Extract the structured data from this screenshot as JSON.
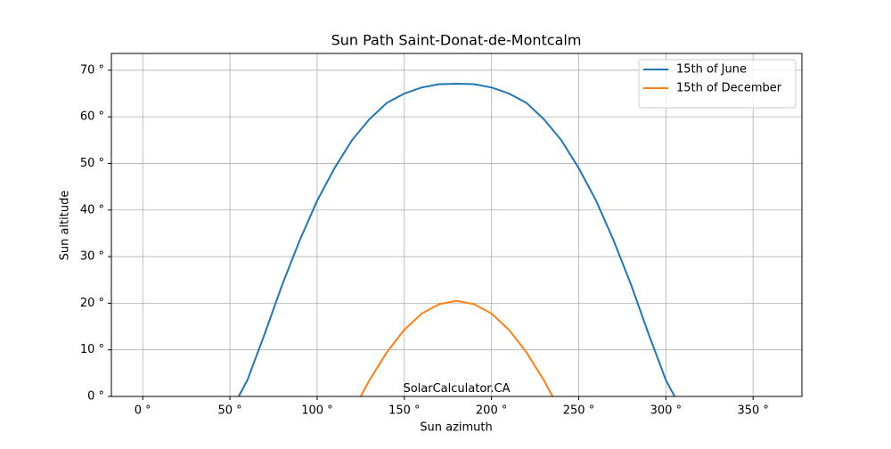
{
  "chart_data": {
    "type": "line",
    "title": "Sun Path Saint-Donat-de-Montcalm",
    "xlabel": "Sun azimuth",
    "ylabel": "Sun altitude",
    "annotation": "SolarCalculator.CA",
    "xlim": [
      -18,
      378
    ],
    "ylim": [
      0,
      73.6
    ],
    "xticks": [
      {
        "value": 0,
        "label": "0 °"
      },
      {
        "value": 50,
        "label": "50 °"
      },
      {
        "value": 100,
        "label": "100 °"
      },
      {
        "value": 150,
        "label": "150 °"
      },
      {
        "value": 200,
        "label": "200 °"
      },
      {
        "value": 250,
        "label": "250 °"
      },
      {
        "value": 300,
        "label": "300 °"
      },
      {
        "value": 350,
        "label": "350 °"
      }
    ],
    "yticks": [
      {
        "value": 0,
        "label": "0 °"
      },
      {
        "value": 10,
        "label": "10 °"
      },
      {
        "value": 20,
        "label": "20 °"
      },
      {
        "value": 30,
        "label": "30 °"
      },
      {
        "value": 40,
        "label": "40 °"
      },
      {
        "value": 50,
        "label": "50 °"
      },
      {
        "value": 60,
        "label": "60 °"
      },
      {
        "value": 70,
        "label": "70 °"
      }
    ],
    "grid": true,
    "legend": "upper-right",
    "series": [
      {
        "name": "15th of June",
        "color": "#1f77b4",
        "x": [
          55,
          60,
          70,
          80,
          90,
          100,
          110,
          120,
          130,
          140,
          150,
          160,
          170,
          180,
          190,
          200,
          210,
          220,
          230,
          240,
          250,
          260,
          270,
          280,
          290,
          300,
          305
        ],
        "values": [
          0,
          3.5,
          13.5,
          24,
          33.5,
          42,
          49,
          55,
          59.5,
          63,
          65,
          66.3,
          67,
          67.1,
          67,
          66.3,
          65,
          63,
          59.5,
          55,
          49,
          42,
          33.5,
          24,
          13.5,
          3.5,
          0
        ]
      },
      {
        "name": "15th of December",
        "color": "#ff7f0e",
        "x": [
          125,
          130,
          140,
          150,
          160,
          170,
          180,
          190,
          200,
          210,
          220,
          230,
          235
        ],
        "values": [
          0,
          3.5,
          9.5,
          14.3,
          17.8,
          19.8,
          20.5,
          19.8,
          17.8,
          14.3,
          9.5,
          3.5,
          0
        ]
      }
    ]
  }
}
